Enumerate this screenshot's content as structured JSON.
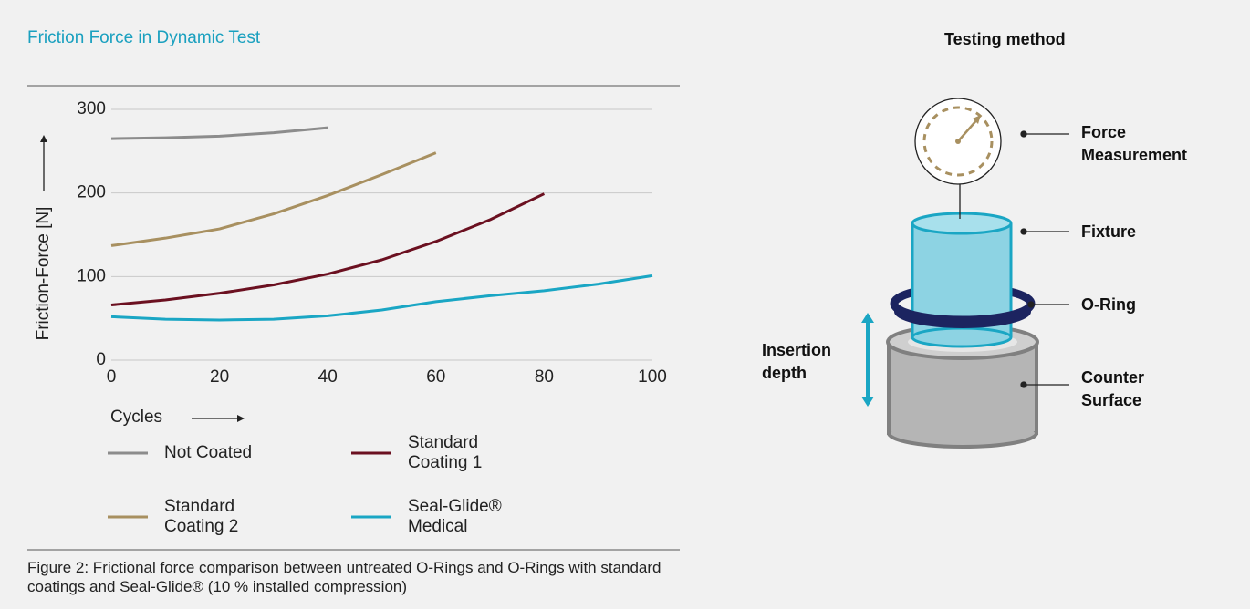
{
  "chart_data": {
    "type": "line",
    "title": "Friction Force in Dynamic Test",
    "y_label": "Friction-Force [N]",
    "x_label": "Cycles",
    "x": [
      0,
      10,
      20,
      30,
      40,
      50,
      60,
      70,
      80,
      90,
      100
    ],
    "series": [
      {
        "name": "Not Coated",
        "color": "#8c8c8c",
        "values": [
          265,
          266,
          268,
          272,
          278,
          null,
          null,
          null,
          null,
          null,
          null
        ]
      },
      {
        "name": "Standard Coating 1",
        "color": "#6b1020",
        "values": [
          66,
          72,
          80,
          90,
          103,
          120,
          142,
          168,
          199,
          null,
          null
        ]
      },
      {
        "name": "Standard Coating 2",
        "color": "#a89060",
        "values": [
          137,
          146,
          157,
          175,
          197,
          222,
          248,
          null,
          null,
          null,
          null
        ]
      },
      {
        "name": "Seal-Glide® Medical",
        "color": "#1aa6c4",
        "values": [
          52,
          49,
          48,
          49,
          53,
          60,
          70,
          77,
          83,
          91,
          101
        ]
      }
    ],
    "xlim": [
      0,
      100
    ],
    "xticks": [
      0,
      20,
      40,
      60,
      80,
      100
    ],
    "ylim": [
      0,
      300
    ],
    "yticks": [
      0,
      100,
      200,
      300
    ],
    "grid": true,
    "caption": "Figure 2: Frictional force comparison between untreated O-Rings and O-Rings with standard coatings and Seal-Glide® (10 % installed compression)"
  },
  "diagram": {
    "title": "Testing method",
    "labels": [
      "Force Measurement",
      "Fixture",
      "O-Ring",
      "Counter Surface",
      "Insertion depth"
    ]
  }
}
